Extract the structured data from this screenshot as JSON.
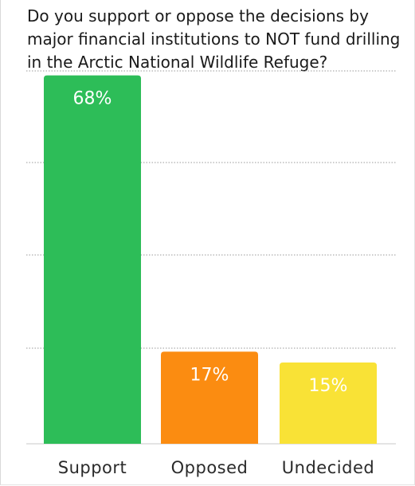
{
  "chart_data": {
    "type": "bar",
    "title": "Do you support or oppose the decisions by major financial institutions to NOT fund drilling in the Arctic National Wildlife Refuge?",
    "categories": [
      "Support",
      "Opposed",
      "Undecided"
    ],
    "values": [
      68,
      17,
      15
    ],
    "value_labels": [
      "68%",
      "17%",
      "15%"
    ],
    "colors": [
      "#2dbd58",
      "#fb8c11",
      "#f9e236"
    ],
    "ylim": [
      0,
      80
    ],
    "grid": true,
    "legend": "none"
  }
}
